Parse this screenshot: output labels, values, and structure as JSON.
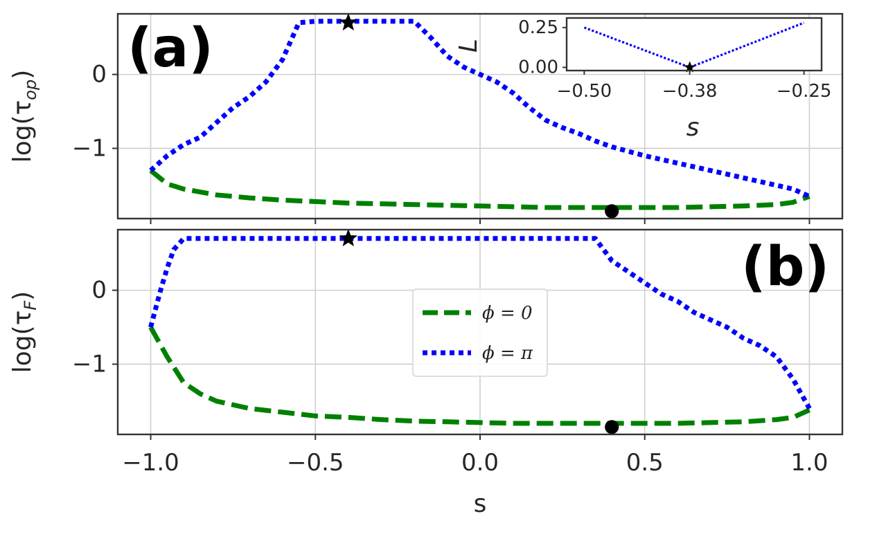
{
  "chart_data": [
    {
      "type": "line",
      "panel_label": "(a)",
      "xlabel": "",
      "ylabel": "log(τ_op)",
      "ylabel_main": "log(τ",
      "ylabel_sub": "op",
      "ylabel_close": ")",
      "xlim": [
        -1.1,
        1.1
      ],
      "ylim": [
        -1.95,
        0.82
      ],
      "yticks": [
        0,
        -1
      ],
      "ytick_labels": [
        "0",
        "−1"
      ],
      "grid": true,
      "series": [
        {
          "key": "phi0",
          "color": "#008000",
          "style": "dashed",
          "x": [
            -1.0,
            -0.95,
            -0.9,
            -0.8,
            -0.7,
            -0.6,
            -0.5,
            -0.4,
            -0.3,
            -0.2,
            -0.1,
            0.0,
            0.1,
            0.2,
            0.3,
            0.4,
            0.5,
            0.6,
            0.7,
            0.8,
            0.9,
            0.95,
            1.0
          ],
          "y": [
            -1.3,
            -1.48,
            -1.55,
            -1.63,
            -1.67,
            -1.7,
            -1.72,
            -1.74,
            -1.75,
            -1.76,
            -1.77,
            -1.78,
            -1.79,
            -1.8,
            -1.8,
            -1.8,
            -1.8,
            -1.8,
            -1.79,
            -1.78,
            -1.76,
            -1.73,
            -1.65
          ]
        },
        {
          "key": "phipi",
          "color": "#0000ff",
          "style": "dotted",
          "x": [
            -1.0,
            -0.95,
            -0.9,
            -0.85,
            -0.8,
            -0.75,
            -0.7,
            -0.65,
            -0.6,
            -0.55,
            -0.5,
            -0.45,
            -0.4,
            -0.35,
            -0.3,
            -0.25,
            -0.2,
            -0.15,
            -0.1,
            -0.05,
            0.0,
            0.05,
            0.1,
            0.15,
            0.2,
            0.25,
            0.3,
            0.35,
            0.4,
            0.5,
            0.6,
            0.7,
            0.8,
            0.9,
            0.95,
            1.0
          ],
          "y": [
            -1.3,
            -1.1,
            -0.95,
            -0.85,
            -0.65,
            -0.45,
            -0.3,
            -0.1,
            0.2,
            0.7,
            0.72,
            0.72,
            0.72,
            0.72,
            0.72,
            0.72,
            0.72,
            0.5,
            0.25,
            0.1,
            0.0,
            -0.1,
            -0.25,
            -0.45,
            -0.62,
            -0.72,
            -0.8,
            -0.9,
            -0.98,
            -1.1,
            -1.2,
            -1.3,
            -1.4,
            -1.5,
            -1.55,
            -1.65
          ]
        }
      ],
      "markers": [
        {
          "type": "star",
          "x": -0.4,
          "y": 0.7
        },
        {
          "type": "circle",
          "x": 0.4,
          "y": -1.85
        }
      ],
      "inset": {
        "type": "line",
        "xlabel": "s",
        "ylabel": "L",
        "xlim": [
          -0.52,
          -0.23
        ],
        "ylim": [
          -0.02,
          0.31
        ],
        "xticks": [
          -0.5,
          -0.38,
          -0.25
        ],
        "xtick_labels": [
          "−0.50",
          "−0.38",
          "−0.25"
        ],
        "yticks": [
          0.25,
          0.0
        ],
        "ytick_labels": [
          "0.25",
          "0.00"
        ],
        "series": [
          {
            "key": "phipi",
            "color": "#0000ff",
            "style": "dotted",
            "x": [
              -0.5,
              -0.38,
              -0.25
            ],
            "y": [
              0.25,
              0.0,
              0.28
            ]
          }
        ],
        "markers": [
          {
            "type": "star",
            "x": -0.38,
            "y": 0.0
          }
        ]
      }
    },
    {
      "type": "line",
      "panel_label": "(b)",
      "xlabel": "s",
      "ylabel": "log(τ_F)",
      "ylabel_main": "log(τ",
      "ylabel_sub": "F",
      "ylabel_close": ")",
      "xlim": [
        -1.1,
        1.1
      ],
      "ylim": [
        -1.95,
        0.82
      ],
      "xticks": [
        -1.0,
        -0.5,
        0.0,
        0.5,
        1.0
      ],
      "xtick_labels": [
        "−1.0",
        "−0.5",
        "0.0",
        "0.5",
        "1.0"
      ],
      "yticks": [
        0,
        -1
      ],
      "ytick_labels": [
        "0",
        "−1"
      ],
      "grid": true,
      "legend": {
        "position": "center",
        "entries": [
          {
            "key": "phi0",
            "label": "ϕ = 0",
            "color": "#008000",
            "style": "dashed"
          },
          {
            "key": "phipi",
            "label": "ϕ = π",
            "color": "#0000ff",
            "style": "dotted"
          }
        ]
      },
      "series": [
        {
          "key": "phi0",
          "color": "#008000",
          "style": "dashed",
          "x": [
            -1.0,
            -0.95,
            -0.9,
            -0.85,
            -0.8,
            -0.7,
            -0.6,
            -0.5,
            -0.4,
            -0.3,
            -0.2,
            -0.1,
            0.0,
            0.1,
            0.2,
            0.3,
            0.4,
            0.5,
            0.6,
            0.7,
            0.8,
            0.9,
            0.95,
            1.0
          ],
          "y": [
            -0.5,
            -0.9,
            -1.25,
            -1.4,
            -1.5,
            -1.6,
            -1.65,
            -1.7,
            -1.72,
            -1.75,
            -1.77,
            -1.78,
            -1.79,
            -1.8,
            -1.8,
            -1.8,
            -1.8,
            -1.8,
            -1.8,
            -1.79,
            -1.78,
            -1.75,
            -1.72,
            -1.62
          ]
        },
        {
          "key": "phipi",
          "color": "#0000ff",
          "style": "dotted",
          "x": [
            -1.0,
            -0.97,
            -0.95,
            -0.93,
            -0.9,
            -0.8,
            -0.6,
            -0.4,
            -0.2,
            0.0,
            0.2,
            0.35,
            0.4,
            0.45,
            0.5,
            0.55,
            0.6,
            0.65,
            0.7,
            0.75,
            0.8,
            0.85,
            0.9,
            0.95,
            1.0
          ],
          "y": [
            -0.5,
            0.0,
            0.3,
            0.55,
            0.7,
            0.7,
            0.7,
            0.7,
            0.7,
            0.7,
            0.7,
            0.7,
            0.4,
            0.25,
            0.1,
            -0.05,
            -0.15,
            -0.3,
            -0.4,
            -0.5,
            -0.65,
            -0.75,
            -0.9,
            -1.2,
            -1.6
          ]
        }
      ],
      "markers": [
        {
          "type": "star",
          "x": -0.4,
          "y": 0.7
        },
        {
          "type": "circle",
          "x": 0.4,
          "y": -1.85
        }
      ]
    }
  ]
}
